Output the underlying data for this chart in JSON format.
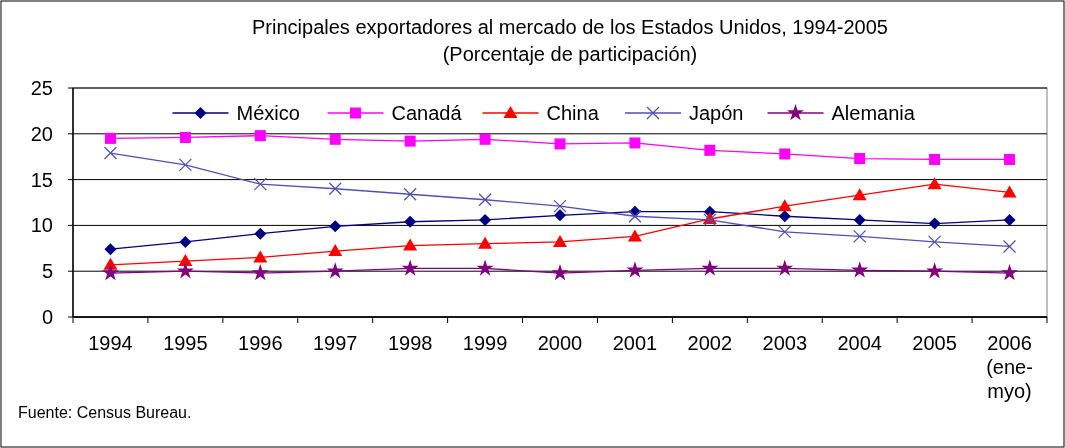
{
  "chart_data": {
    "type": "line",
    "title": "Principales exportadores al mercado de los Estados Unidos, 1994-2005",
    "subtitle": "(Porcentaje de participación)",
    "categories": [
      "1994",
      "1995",
      "1996",
      "1997",
      "1998",
      "1999",
      "2000",
      "2001",
      "2002",
      "2003",
      "2004",
      "2005",
      "2006 (ene-myo)"
    ],
    "series": [
      {
        "name": "México",
        "color": "#000080",
        "marker": "diamond",
        "values": [
          7.4,
          8.2,
          9.1,
          9.9,
          10.4,
          10.6,
          11.1,
          11.5,
          11.5,
          11.0,
          10.6,
          10.2,
          10.6
        ]
      },
      {
        "name": "Canadá",
        "color": "#ff00ff",
        "marker": "square",
        "values": [
          19.5,
          19.6,
          19.8,
          19.4,
          19.2,
          19.4,
          18.9,
          19.0,
          18.2,
          17.8,
          17.3,
          17.2,
          17.2
        ]
      },
      {
        "name": "China",
        "color": "#ff0000",
        "marker": "triangle",
        "values": [
          5.7,
          6.1,
          6.5,
          7.2,
          7.8,
          8.0,
          8.2,
          8.8,
          10.7,
          12.1,
          13.3,
          14.5,
          13.6
        ]
      },
      {
        "name": "Japón",
        "color": "#5050b0",
        "marker": "cross",
        "values": [
          17.9,
          16.6,
          14.5,
          14.0,
          13.4,
          12.8,
          12.1,
          11.0,
          10.6,
          9.3,
          8.8,
          8.2,
          7.7
        ]
      },
      {
        "name": "Alemania",
        "color": "#800080",
        "marker": "star",
        "values": [
          4.8,
          5.0,
          4.8,
          5.0,
          5.3,
          5.3,
          4.8,
          5.1,
          5.3,
          5.3,
          5.1,
          5.0,
          4.8
        ]
      }
    ],
    "ylim": [
      0,
      25
    ],
    "yticks": [
      0,
      5,
      10,
      15,
      20,
      25
    ],
    "grid": "y",
    "legend": "top",
    "annotations": [
      "Fuente: Census Bureau."
    ]
  }
}
